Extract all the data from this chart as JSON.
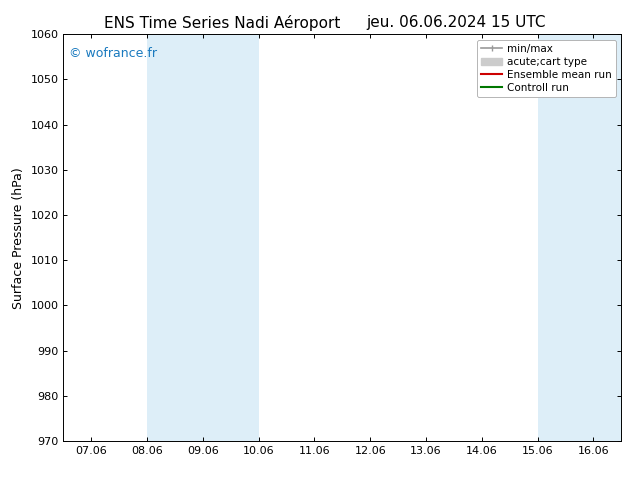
{
  "title_left": "ENS Time Series Nadi Aéroport",
  "title_right": "jeu. 06.06.2024 15 UTC",
  "ylabel": "Surface Pressure (hPa)",
  "ylim": [
    970,
    1060
  ],
  "yticks": [
    970,
    980,
    990,
    1000,
    1010,
    1020,
    1030,
    1040,
    1050,
    1060
  ],
  "xtick_labels": [
    "07.06",
    "08.06",
    "09.06",
    "10.06",
    "11.06",
    "12.06",
    "13.06",
    "14.06",
    "15.06",
    "16.06"
  ],
  "xtick_positions": [
    0,
    1,
    2,
    3,
    4,
    5,
    6,
    7,
    8,
    9
  ],
  "xlim": [
    -0.5,
    9.5
  ],
  "background_color": "#ffffff",
  "plot_bg_color": "#ffffff",
  "shaded_bands": [
    {
      "x_start": 1.0,
      "x_end": 2.0,
      "color": "#ddeef8"
    },
    {
      "x_start": 2.0,
      "x_end": 3.0,
      "color": "#ddeef8"
    },
    {
      "x_start": 8.0,
      "x_end": 9.0,
      "color": "#ddeef8"
    },
    {
      "x_start": 9.0,
      "x_end": 9.5,
      "color": "#ddeef8"
    }
  ],
  "watermark": "© wofrance.fr",
  "watermark_color": "#1a7abf",
  "legend_entries": [
    {
      "label": "min/max",
      "color": "#999999",
      "lw": 1.2
    },
    {
      "label": "acute;cart type",
      "color": "#cccccc",
      "lw": 5
    },
    {
      "label": "Ensemble mean run",
      "color": "#cc0000",
      "lw": 1.5
    },
    {
      "label": "Controll run",
      "color": "#007700",
      "lw": 1.5
    }
  ],
  "title_fontsize": 11,
  "tick_fontsize": 8,
  "ylabel_fontsize": 9,
  "legend_fontsize": 7.5
}
